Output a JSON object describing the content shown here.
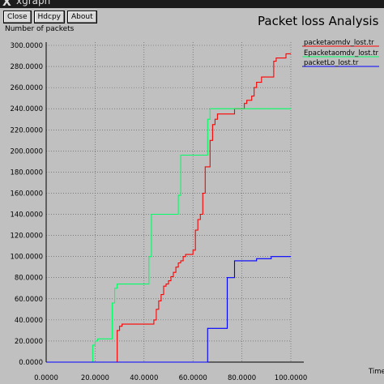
{
  "window": {
    "title": "xgraph",
    "icon": "x-logo-icon"
  },
  "toolbar": {
    "close_label": "Close",
    "hdcpy_label": "Hdcpy",
    "about_label": "About"
  },
  "chart_data": {
    "type": "line",
    "title": "Packet loss Analysis",
    "ylabel": "Number of packets",
    "xlabel": "Time",
    "xlim": [
      0,
      100
    ],
    "ylim": [
      0,
      300
    ],
    "x_ticks": [
      "0.0000",
      "20.0000",
      "40.0000",
      "60.0000",
      "80.0000",
      "100.0000"
    ],
    "y_ticks": [
      "0.0000",
      "20.0000",
      "40.0000",
      "60.0000",
      "80.0000",
      "100.0000",
      "120.0000",
      "140.0000",
      "160.0000",
      "180.0000",
      "200.0000",
      "220.0000",
      "240.0000",
      "260.0000",
      "280.0000",
      "300.0000"
    ],
    "grid": true,
    "legend_placement": "top-right",
    "series": [
      {
        "name": "packetaomdv_lost.tr",
        "color": "#ff0000",
        "points": [
          [
            0,
            0
          ],
          [
            29,
            0
          ],
          [
            29,
            30
          ],
          [
            30,
            30
          ],
          [
            30,
            34
          ],
          [
            31,
            34
          ],
          [
            31,
            36
          ],
          [
            44,
            36
          ],
          [
            44,
            40
          ],
          [
            45,
            40
          ],
          [
            45,
            50
          ],
          [
            46,
            50
          ],
          [
            46,
            58
          ],
          [
            47,
            58
          ],
          [
            47,
            64
          ],
          [
            48,
            64
          ],
          [
            48,
            72
          ],
          [
            49,
            72
          ],
          [
            49,
            74
          ],
          [
            50,
            74
          ],
          [
            50,
            77
          ],
          [
            51,
            77
          ],
          [
            51,
            81
          ],
          [
            52,
            81
          ],
          [
            52,
            85
          ],
          [
            53,
            85
          ],
          [
            53,
            90
          ],
          [
            54,
            90
          ],
          [
            54,
            94
          ],
          [
            55,
            94
          ],
          [
            55,
            96
          ],
          [
            56,
            96
          ],
          [
            56,
            100
          ],
          [
            57,
            100
          ],
          [
            57,
            102
          ],
          [
            60,
            102
          ],
          [
            60,
            106
          ],
          [
            61,
            106
          ],
          [
            61,
            125
          ],
          [
            62,
            125
          ],
          [
            62,
            135
          ],
          [
            63,
            135
          ],
          [
            63,
            140
          ],
          [
            64,
            140
          ],
          [
            64,
            160
          ],
          [
            65,
            160
          ],
          [
            65,
            185
          ],
          [
            67,
            185
          ],
          [
            67,
            210
          ],
          [
            68,
            210
          ],
          [
            68,
            225
          ],
          [
            69,
            225
          ],
          [
            69,
            230
          ],
          [
            70,
            230
          ],
          [
            70,
            235
          ],
          [
            77,
            235
          ],
          [
            77,
            240
          ],
          [
            81,
            240
          ],
          [
            81,
            245
          ],
          [
            82,
            245
          ],
          [
            82,
            248
          ],
          [
            84,
            248
          ],
          [
            84,
            252
          ],
          [
            85,
            252
          ],
          [
            85,
            260
          ],
          [
            86,
            260
          ],
          [
            86,
            265
          ],
          [
            88,
            265
          ],
          [
            88,
            270
          ],
          [
            93,
            270
          ],
          [
            93,
            285
          ],
          [
            94,
            285
          ],
          [
            94,
            288
          ],
          [
            98,
            288
          ],
          [
            98,
            292
          ],
          [
            100,
            292
          ]
        ]
      },
      {
        "name": "Epacketaomdv_lost.tr",
        "color": "#00ff66",
        "points": [
          [
            0,
            0
          ],
          [
            19,
            0
          ],
          [
            19,
            16
          ],
          [
            20,
            16
          ],
          [
            20,
            20
          ],
          [
            21,
            20
          ],
          [
            21,
            22
          ],
          [
            27,
            22
          ],
          [
            27,
            56
          ],
          [
            28,
            56
          ],
          [
            28,
            70
          ],
          [
            29,
            70
          ],
          [
            29,
            74
          ],
          [
            42,
            74
          ],
          [
            42,
            100
          ],
          [
            43,
            100
          ],
          [
            43,
            140
          ],
          [
            54,
            140
          ],
          [
            54,
            158
          ],
          [
            55,
            158
          ],
          [
            55,
            196
          ],
          [
            66,
            196
          ],
          [
            66,
            230
          ],
          [
            67,
            230
          ],
          [
            67,
            240
          ],
          [
            100,
            240
          ]
        ]
      },
      {
        "name": "packetLo_lost.tr",
        "color": "#0000ff",
        "points": [
          [
            0,
            0
          ],
          [
            66,
            0
          ],
          [
            66,
            32
          ],
          [
            74,
            32
          ],
          [
            74,
            80
          ],
          [
            77,
            80
          ],
          [
            77,
            96
          ],
          [
            86,
            96
          ],
          [
            86,
            98
          ],
          [
            92,
            98
          ],
          [
            92,
            100
          ],
          [
            100,
            100
          ]
        ]
      }
    ]
  }
}
